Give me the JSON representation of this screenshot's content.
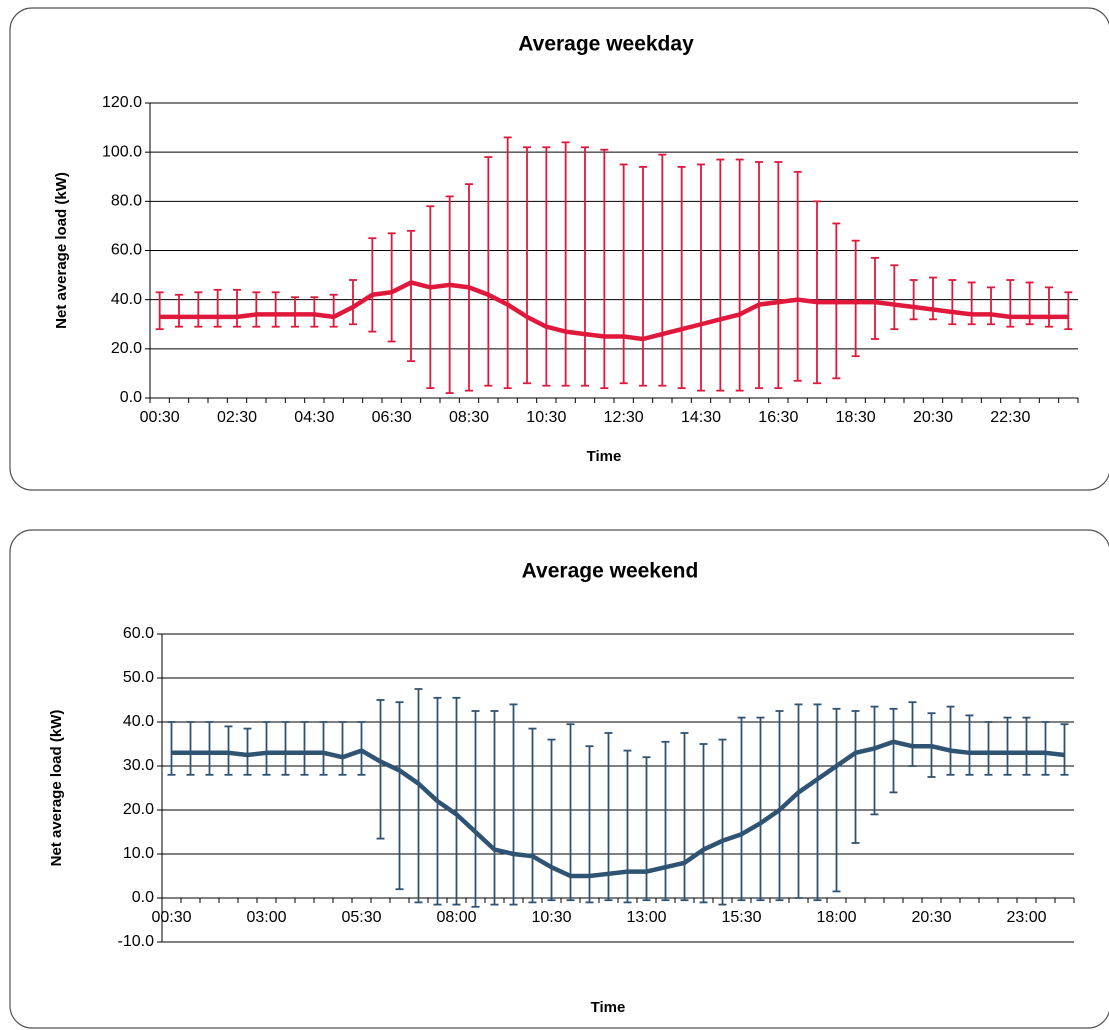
{
  "chart_data": [
    {
      "type": "line",
      "title": "Average weekday",
      "x_label": "Time",
      "y_label": "Net average load (kW)",
      "categories": [
        "00:30",
        null,
        null,
        null,
        "02:30",
        null,
        null,
        null,
        "04:30",
        null,
        null,
        null,
        "06:30",
        null,
        null,
        null,
        "08:30",
        null,
        null,
        null,
        "10:30",
        null,
        null,
        null,
        "12:30",
        null,
        null,
        null,
        "14:30",
        null,
        null,
        null,
        "16:30",
        null,
        null,
        null,
        "18:30",
        null,
        null,
        null,
        "20:30",
        null,
        null,
        null,
        "22:30",
        null,
        null,
        null
      ],
      "series": [
        {
          "color": "#e0193c",
          "values": [
            33,
            33,
            33,
            33,
            33,
            34,
            34,
            34,
            34,
            33,
            37,
            42,
            43,
            47,
            45,
            46,
            45,
            42,
            38,
            33,
            29,
            27,
            26,
            25,
            25,
            24,
            26,
            28,
            30,
            32,
            34,
            38,
            39,
            40,
            39,
            39,
            39,
            39,
            38,
            37,
            36,
            35,
            34,
            34,
            33,
            33,
            33,
            33
          ],
          "error_lower": [
            28,
            29,
            29,
            29,
            29,
            29,
            29,
            29,
            29,
            29,
            30,
            27,
            23,
            15,
            4,
            2,
            3,
            5,
            4,
            6,
            5,
            5,
            5,
            4,
            6,
            5,
            5,
            4,
            3,
            3,
            3,
            4,
            4,
            7,
            6,
            8,
            17,
            24,
            28,
            32,
            32,
            30,
            30,
            30,
            29,
            30,
            29,
            28
          ],
          "error_upper": [
            43,
            42,
            43,
            44,
            44,
            43,
            43,
            41,
            41,
            42,
            48,
            65,
            67,
            68,
            78,
            82,
            87,
            98,
            106,
            102,
            102,
            104,
            102,
            101,
            95,
            94,
            99,
            94,
            95,
            97,
            97,
            96,
            96,
            92,
            80,
            71,
            64,
            57,
            54,
            48,
            49,
            48,
            47,
            45,
            48,
            47,
            45,
            43
          ]
        }
      ],
      "ylim": [
        0,
        120
      ],
      "yticks": [
        {
          "value": 0,
          "label": "0.0"
        },
        {
          "value": 20,
          "label": "20.0"
        },
        {
          "value": 40,
          "label": "40.0"
        },
        {
          "value": 60,
          "label": "60.0"
        },
        {
          "value": 80,
          "label": "80.0"
        },
        {
          "value": 100,
          "label": "100.0"
        },
        {
          "value": 120,
          "label": "120.0"
        }
      ],
      "grid": true
    },
    {
      "type": "line",
      "title": "Average weekend",
      "x_label": "Time",
      "y_label": "Net average load (kW)",
      "categories": [
        "00:30",
        null,
        null,
        null,
        null,
        "03:00",
        null,
        null,
        null,
        null,
        "05:30",
        null,
        null,
        null,
        null,
        "08:00",
        null,
        null,
        null,
        null,
        "10:30",
        null,
        null,
        null,
        null,
        "13:00",
        null,
        null,
        null,
        null,
        "15:30",
        null,
        null,
        null,
        null,
        "18:00",
        null,
        null,
        null,
        null,
        "20:30",
        null,
        null,
        null,
        null,
        "23:00",
        null,
        null
      ],
      "series": [
        {
          "color": "#2f5373",
          "values": [
            33,
            33,
            33,
            33,
            32.5,
            33,
            33,
            33,
            33,
            32,
            33.5,
            31,
            29,
            26,
            22,
            19,
            15,
            11,
            10,
            9.5,
            7,
            5,
            5,
            5.5,
            6,
            6,
            7,
            8,
            11,
            13,
            14.5,
            17,
            20,
            24,
            27,
            30,
            33,
            34,
            35.5,
            34.5,
            34.5,
            33.5,
            33,
            33,
            33,
            33,
            33,
            32.5
          ],
          "error_lower": [
            28,
            28,
            28,
            28,
            28,
            28,
            28,
            28,
            28,
            28,
            28,
            13.5,
            2,
            -1,
            -1.5,
            -1.5,
            -2,
            -1.5,
            -1.5,
            -1,
            -0.5,
            -0.5,
            -1,
            -0.5,
            -1,
            -0.5,
            -0.5,
            -0.5,
            -1,
            -1.5,
            -0.5,
            -0.5,
            -0.5,
            0,
            -0.5,
            1.5,
            12.5,
            19,
            24,
            30,
            27.5,
            28,
            28,
            28,
            28,
            28,
            28,
            28
          ],
          "error_upper": [
            40,
            40,
            40,
            39,
            38.5,
            40,
            40,
            40,
            40,
            40,
            40,
            45,
            44.5,
            47.5,
            45.5,
            45.5,
            42.5,
            42.5,
            44,
            38.5,
            36,
            39.5,
            34.5,
            37.5,
            33.5,
            32,
            35.5,
            37.5,
            35,
            36,
            41,
            41,
            42.5,
            44,
            44,
            43,
            42.5,
            43.5,
            43,
            44.5,
            42,
            43.5,
            41.5,
            40,
            41,
            41,
            40,
            39.5
          ]
        }
      ],
      "ylim": [
        -10,
        60
      ],
      "yticks": [
        {
          "value": -10,
          "label": "-10.0"
        },
        {
          "value": 0,
          "label": "0.0"
        },
        {
          "value": 10,
          "label": "10.0"
        },
        {
          "value": 20,
          "label": "20.0"
        },
        {
          "value": 30,
          "label": "30.0"
        },
        {
          "value": 40,
          "label": "40.0"
        },
        {
          "value": 50,
          "label": "50.0"
        },
        {
          "value": 60,
          "label": "60.0"
        }
      ],
      "grid": true
    }
  ]
}
